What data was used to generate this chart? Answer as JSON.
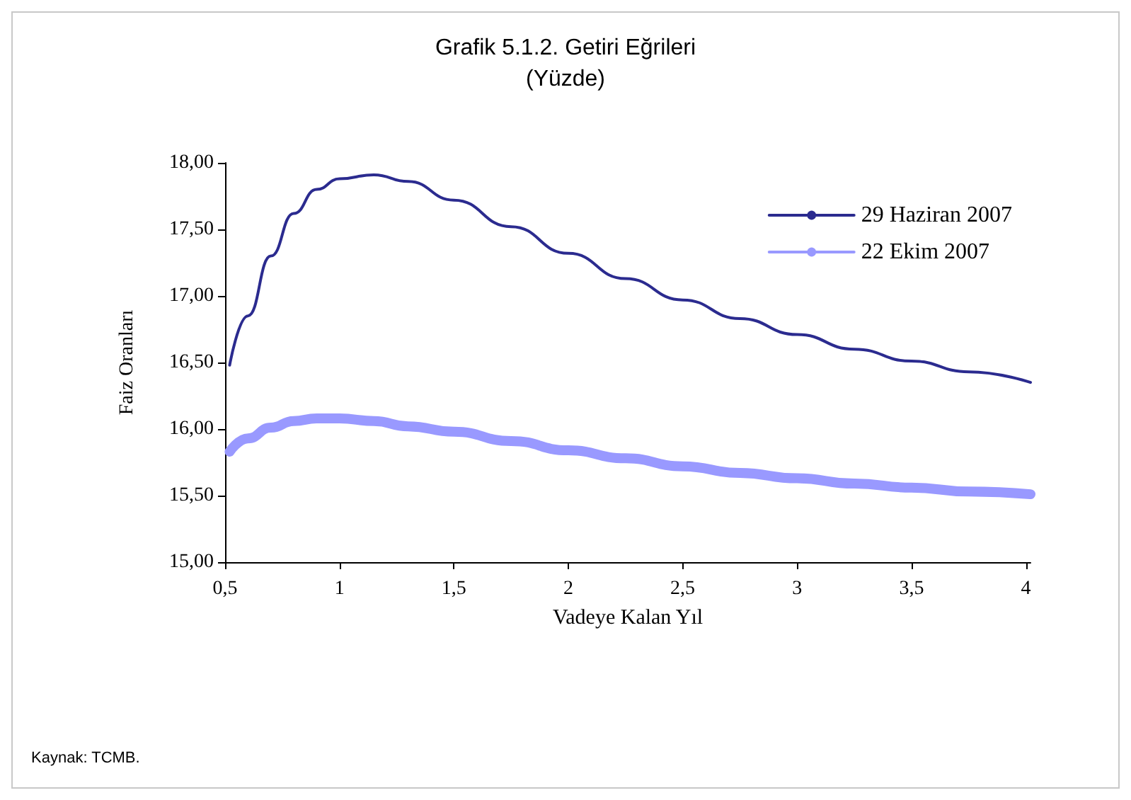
{
  "chart_data": {
    "type": "line",
    "title": "Grafik 5.1.2. Getiri Eğrileri",
    "subtitle": "(Yüzde)",
    "xlabel": "Vadeye Kalan Yıl",
    "ylabel": "Faiz Oranları",
    "x": [
      0.52,
      0.6,
      0.7,
      0.8,
      0.9,
      1.0,
      1.15,
      1.3,
      1.5,
      1.75,
      2,
      2.25,
      2.5,
      2.75,
      3,
      3.25,
      3.5,
      3.75,
      4.02
    ],
    "series": [
      {
        "name": "29 Haziran 2007",
        "color": "#2b2b8f",
        "values": [
          16.48,
          16.85,
          17.3,
          17.62,
          17.8,
          17.88,
          17.91,
          17.86,
          17.72,
          17.52,
          17.32,
          17.13,
          16.97,
          16.83,
          16.71,
          16.6,
          16.51,
          16.43,
          16.35
        ]
      },
      {
        "name": "22 Ekim 2007",
        "color": "#9999ff",
        "values": [
          15.83,
          15.93,
          16.01,
          16.06,
          16.08,
          16.08,
          16.06,
          16.02,
          15.98,
          15.91,
          15.84,
          15.78,
          15.72,
          15.67,
          15.63,
          15.59,
          15.56,
          15.53,
          15.51
        ]
      }
    ],
    "xlim": [
      0.5,
      4.02
    ],
    "xticks": [
      {
        "value": 0.5,
        "label": "0,5"
      },
      1,
      {
        "value": 1.5,
        "label": "1,5"
      },
      2,
      {
        "value": 2.5,
        "label": "2,5"
      },
      3,
      {
        "value": 3.5,
        "label": "3,5"
      },
      4
    ],
    "ylim": [
      15,
      18
    ],
    "yticks": [
      {
        "value": 15,
        "label": "15,00"
      },
      {
        "value": 15.5,
        "label": "15,50"
      },
      {
        "value": 16,
        "label": "16,00"
      },
      {
        "value": 16.5,
        "label": "16,50"
      },
      {
        "value": 17,
        "label": "17,00"
      },
      {
        "value": 17.5,
        "label": "17,50"
      },
      {
        "value": 18,
        "label": "18,00"
      }
    ],
    "grid": false,
    "legend": "top right",
    "marker": "none",
    "line_style": "solid",
    "annotations": [
      "Kaynak: TCMB."
    ]
  }
}
